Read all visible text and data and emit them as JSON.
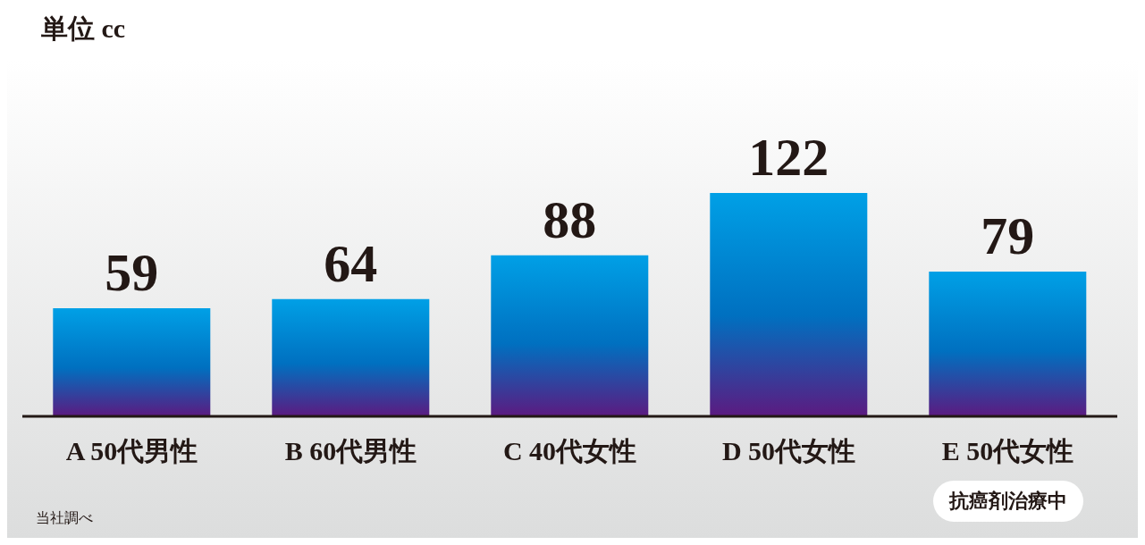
{
  "chart_data": {
    "type": "bar",
    "title": "単位 cc",
    "categories": [
      "A 50代男性",
      "B 60代男性",
      "C 40代女性",
      "D 50代女性",
      "E 50代女性"
    ],
    "values": [
      59,
      64,
      88,
      122,
      79
    ],
    "color": "#0070c0",
    "data_labels": true,
    "annotations": [
      "抗癌剤治療中",
      "当社調べ"
    ]
  }
}
